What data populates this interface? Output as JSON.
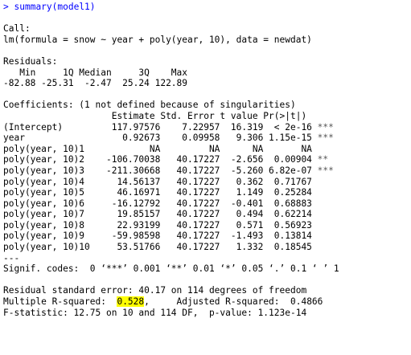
{
  "prompt": ">",
  "command": "summary(model1)",
  "call_header": "Call:",
  "call": "lm(formula = snow ~ year + poly(year, 10), data = newdat)",
  "residuals_header": "Residuals:",
  "residuals_labels": "   Min     1Q Median     3Q    Max ",
  "residuals_values": "-82.88 -25.31  -2.47  25.24 122.89 ",
  "coef_header": "Coefficients: (1 not defined because of singularities)",
  "coef_columns": "                    Estimate Std. Error t value Pr(>|t|)    ",
  "coef_rows": [
    {
      "text": "(Intercept)         117.97576    7.22957  16.319  < 2e-16 ",
      "stars": "***"
    },
    {
      "text": "year                  0.92673    0.09958   9.306 1.15e-15 ",
      "stars": "***"
    },
    {
      "text": "poly(year, 10)1            NA         NA      NA       NA ",
      "stars": ""
    },
    {
      "text": "poly(year, 10)2    -106.70038   40.17227  -2.656  0.00904 ",
      "stars": "** "
    },
    {
      "text": "poly(year, 10)3    -211.30668   40.17227  -5.260 6.82e-07 ",
      "stars": "***"
    },
    {
      "text": "poly(year, 10)4      14.56137   40.17227   0.362  0.71767 ",
      "stars": ""
    },
    {
      "text": "poly(year, 10)5      46.16971   40.17227   1.149  0.25284 ",
      "stars": ""
    },
    {
      "text": "poly(year, 10)6     -16.12792   40.17227  -0.401  0.68883 ",
      "stars": ""
    },
    {
      "text": "poly(year, 10)7      19.85157   40.17227   0.494  0.62214 ",
      "stars": ""
    },
    {
      "text": "poly(year, 10)8      22.93199   40.17227   0.571  0.56923 ",
      "stars": ""
    },
    {
      "text": "poly(year, 10)9     -59.98598   40.17227  -1.493  0.13814 ",
      "stars": ""
    },
    {
      "text": "poly(year, 10)10     53.51766   40.17227   1.332  0.18545 ",
      "stars": ""
    }
  ],
  "separator": "---",
  "signif_codes": "Signif. codes:  0 ‘***’ 0.001 ‘**’ 0.01 ‘*’ 0.05 ‘.’ 0.1 ‘ ’ 1",
  "residual_se": "Residual standard error: 40.17 on 114 degrees of freedom",
  "r_squared_prefix": "Multiple R-squared:  ",
  "r_squared_value": "0.528",
  "r_squared_suffix": ",\tAdjusted R-squared:  0.4866 ",
  "f_statistic": "F-statistic: 12.75 on 10 and 114 DF,  p-value: 1.123e-14",
  "colors": {
    "command": "#0000ff",
    "highlight": "#ffff00",
    "stars": "#555555"
  }
}
